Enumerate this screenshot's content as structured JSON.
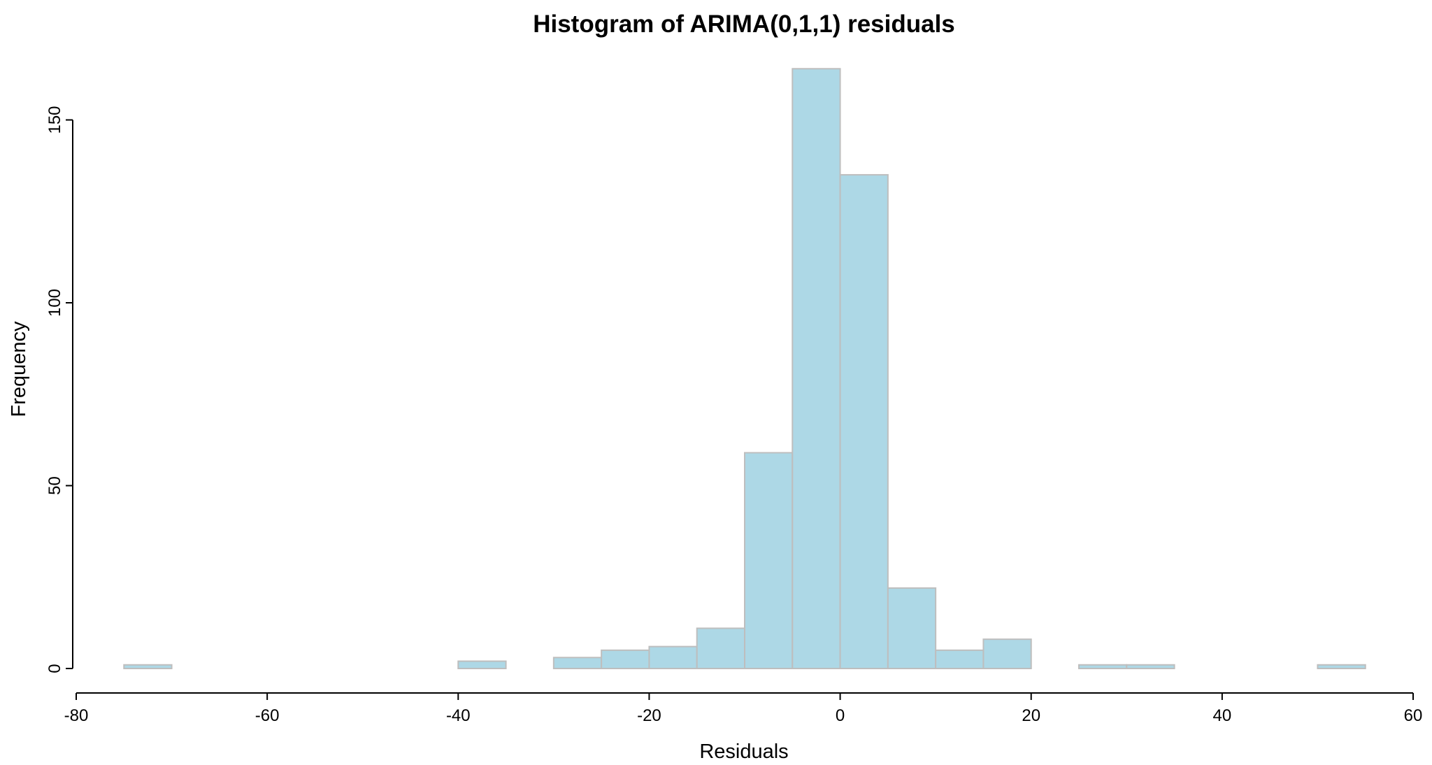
{
  "chart_data": {
    "type": "bar",
    "title": "Histogram of ARIMA(0,1,1) residuals",
    "xlabel": "Residuals",
    "ylabel": "Frequency",
    "xlim": [
      -80,
      60
    ],
    "ylim": [
      0,
      165
    ],
    "x_ticks": [
      "-80",
      "-60",
      "-40",
      "-20",
      "0",
      "20",
      "40",
      "60"
    ],
    "y_ticks": [
      "0",
      "50",
      "100",
      "150"
    ],
    "bin_width": 5,
    "bins": [
      {
        "start": -75,
        "end": -70,
        "count": 1
      },
      {
        "start": -70,
        "end": -65,
        "count": 0
      },
      {
        "start": -65,
        "end": -60,
        "count": 0
      },
      {
        "start": -60,
        "end": -55,
        "count": 0
      },
      {
        "start": -55,
        "end": -50,
        "count": 0
      },
      {
        "start": -50,
        "end": -45,
        "count": 0
      },
      {
        "start": -45,
        "end": -40,
        "count": 0
      },
      {
        "start": -40,
        "end": -35,
        "count": 2
      },
      {
        "start": -35,
        "end": -30,
        "count": 0
      },
      {
        "start": -30,
        "end": -25,
        "count": 3
      },
      {
        "start": -25,
        "end": -20,
        "count": 5
      },
      {
        "start": -20,
        "end": -15,
        "count": 6
      },
      {
        "start": -15,
        "end": -10,
        "count": 11
      },
      {
        "start": -10,
        "end": -5,
        "count": 59
      },
      {
        "start": -5,
        "end": 0,
        "count": 164
      },
      {
        "start": 0,
        "end": 5,
        "count": 135
      },
      {
        "start": 5,
        "end": 10,
        "count": 22
      },
      {
        "start": 10,
        "end": 15,
        "count": 5
      },
      {
        "start": 15,
        "end": 20,
        "count": 8
      },
      {
        "start": 20,
        "end": 25,
        "count": 0
      },
      {
        "start": 25,
        "end": 30,
        "count": 1
      },
      {
        "start": 30,
        "end": 35,
        "count": 1
      },
      {
        "start": 35,
        "end": 40,
        "count": 0
      },
      {
        "start": 40,
        "end": 45,
        "count": 0
      },
      {
        "start": 45,
        "end": 50,
        "count": 0
      },
      {
        "start": 50,
        "end": 55,
        "count": 1
      }
    ],
    "bar_fill": "#add8e6",
    "bar_stroke": "#bebebe",
    "grid": false,
    "legend": "none"
  }
}
